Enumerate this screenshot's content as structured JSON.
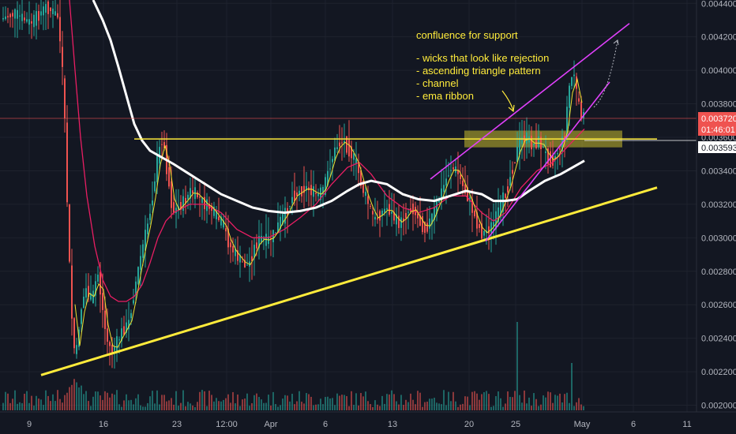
{
  "chart_data": {
    "type": "candlestick",
    "instrument_quote_currency": "",
    "price_axis": {
      "min": 0.00196,
      "max": 0.00442,
      "ticks": [
        "0.004400",
        "0.004200",
        "0.004000",
        "0.003800",
        "0.003600",
        "0.003400",
        "0.003200",
        "0.003000",
        "0.002800",
        "0.002600",
        "0.002400",
        "0.002200",
        "0.002000"
      ]
    },
    "time_axis": {
      "ticks": [
        "9",
        "16",
        "23",
        "12:00",
        "Apr",
        "6",
        "13",
        "20",
        "25",
        "May",
        "6",
        "11"
      ]
    },
    "price_tags": {
      "last_price": "0.003720",
      "countdown": "01:46:01",
      "crosshair_price": "0.003593"
    },
    "price_path": [
      [
        0,
        0.0043
      ],
      [
        20,
        0.00434
      ],
      [
        40,
        0.00428
      ],
      [
        60,
        0.00438
      ],
      [
        75,
        0.00432
      ],
      [
        82,
        0.0039
      ],
      [
        88,
        0.003
      ],
      [
        92,
        0.00255
      ],
      [
        97,
        0.00225
      ],
      [
        103,
        0.00255
      ],
      [
        110,
        0.0027
      ],
      [
        118,
        0.00262
      ],
      [
        125,
        0.0028
      ],
      [
        130,
        0.00262
      ],
      [
        136,
        0.0024
      ],
      [
        143,
        0.00232
      ],
      [
        150,
        0.00238
      ],
      [
        157,
        0.00245
      ],
      [
        164,
        0.00248
      ],
      [
        172,
        0.0027
      ],
      [
        180,
        0.0029
      ],
      [
        187,
        0.00305
      ],
      [
        193,
        0.0032
      ],
      [
        200,
        0.00345
      ],
      [
        207,
        0.0036
      ],
      [
        213,
        0.0034
      ],
      [
        220,
        0.00315
      ],
      [
        227,
        0.00318
      ],
      [
        235,
        0.00322
      ],
      [
        243,
        0.00328
      ],
      [
        252,
        0.00325
      ],
      [
        260,
        0.0032
      ],
      [
        268,
        0.00318
      ],
      [
        276,
        0.00312
      ],
      [
        284,
        0.00308
      ],
      [
        292,
        0.00295
      ],
      [
        300,
        0.0029
      ],
      [
        308,
        0.00285
      ],
      [
        316,
        0.00283
      ],
      [
        324,
        0.00295
      ],
      [
        332,
        0.003
      ],
      [
        340,
        0.00298
      ],
      [
        348,
        0.00302
      ],
      [
        356,
        0.0031
      ],
      [
        364,
        0.00315
      ],
      [
        372,
        0.00325
      ],
      [
        380,
        0.00327
      ],
      [
        388,
        0.0033
      ],
      [
        396,
        0.00328
      ],
      [
        404,
        0.00325
      ],
      [
        412,
        0.0033
      ],
      [
        420,
        0.00345
      ],
      [
        428,
        0.00355
      ],
      [
        436,
        0.00358
      ],
      [
        444,
        0.00352
      ],
      [
        452,
        0.00345
      ],
      [
        460,
        0.0033
      ],
      [
        468,
        0.0032
      ],
      [
        476,
        0.0031
      ],
      [
        484,
        0.00315
      ],
      [
        492,
        0.00318
      ],
      [
        500,
        0.00312
      ],
      [
        508,
        0.00308
      ],
      [
        516,
        0.00315
      ],
      [
        524,
        0.00318
      ],
      [
        532,
        0.0031
      ],
      [
        540,
        0.00305
      ],
      [
        548,
        0.00312
      ],
      [
        556,
        0.00322
      ],
      [
        564,
        0.00332
      ],
      [
        572,
        0.00342
      ],
      [
        580,
        0.0034
      ],
      [
        588,
        0.0033
      ],
      [
        596,
        0.00322
      ],
      [
        604,
        0.0031
      ],
      [
        612,
        0.00302
      ],
      [
        620,
        0.00305
      ],
      [
        628,
        0.0031
      ],
      [
        636,
        0.0032
      ],
      [
        644,
        0.0033
      ],
      [
        652,
        0.00345
      ],
      [
        660,
        0.00358
      ],
      [
        668,
        0.0036
      ],
      [
        676,
        0.00355
      ],
      [
        684,
        0.00358
      ],
      [
        692,
        0.0035
      ],
      [
        700,
        0.00345
      ],
      [
        708,
        0.00352
      ],
      [
        716,
        0.0036
      ],
      [
        722,
        0.0039
      ],
      [
        728,
        0.004
      ],
      [
        734,
        0.00378
      ],
      [
        740,
        0.00372
      ]
    ],
    "ema_slow_white": [
      [
        118,
        0.00442
      ],
      [
        130,
        0.0043
      ],
      [
        140,
        0.00418
      ],
      [
        150,
        0.00402
      ],
      [
        160,
        0.00385
      ],
      [
        170,
        0.00368
      ],
      [
        180,
        0.00358
      ],
      [
        190,
        0.00352
      ],
      [
        205,
        0.00348
      ],
      [
        220,
        0.00344
      ],
      [
        240,
        0.00338
      ],
      [
        260,
        0.00332
      ],
      [
        280,
        0.00326
      ],
      [
        300,
        0.00322
      ],
      [
        320,
        0.00318
      ],
      [
        340,
        0.00316
      ],
      [
        360,
        0.00315
      ],
      [
        380,
        0.00316
      ],
      [
        400,
        0.00318
      ],
      [
        420,
        0.00322
      ],
      [
        440,
        0.00328
      ],
      [
        455,
        0.00332
      ],
      [
        470,
        0.00334
      ],
      [
        490,
        0.00332
      ],
      [
        510,
        0.00326
      ],
      [
        530,
        0.00323
      ],
      [
        550,
        0.00322
      ],
      [
        570,
        0.00325
      ],
      [
        590,
        0.00328
      ],
      [
        610,
        0.00326
      ],
      [
        625,
        0.00322
      ],
      [
        640,
        0.00322
      ],
      [
        655,
        0.00323
      ],
      [
        670,
        0.00328
      ],
      [
        690,
        0.00334
      ],
      [
        710,
        0.00338
      ],
      [
        725,
        0.00342
      ],
      [
        740,
        0.00346
      ]
    ],
    "ema_red": [
      [
        88,
        0.00442
      ],
      [
        95,
        0.004
      ],
      [
        102,
        0.0036
      ],
      [
        110,
        0.00325
      ],
      [
        120,
        0.00295
      ],
      [
        130,
        0.00275
      ],
      [
        140,
        0.00265
      ],
      [
        150,
        0.00262
      ],
      [
        160,
        0.00262
      ],
      [
        170,
        0.00265
      ],
      [
        180,
        0.00272
      ],
      [
        190,
        0.00285
      ],
      [
        200,
        0.003
      ],
      [
        210,
        0.0031
      ],
      [
        220,
        0.00315
      ],
      [
        240,
        0.0032
      ],
      [
        260,
        0.0032
      ],
      [
        280,
        0.00315
      ],
      [
        300,
        0.00305
      ],
      [
        320,
        0.003
      ],
      [
        340,
        0.003
      ],
      [
        360,
        0.00305
      ],
      [
        380,
        0.00312
      ],
      [
        400,
        0.0032
      ],
      [
        420,
        0.00332
      ],
      [
        440,
        0.00342
      ],
      [
        455,
        0.00345
      ],
      [
        470,
        0.00338
      ],
      [
        490,
        0.00325
      ],
      [
        510,
        0.00318
      ],
      [
        530,
        0.00315
      ],
      [
        550,
        0.00318
      ],
      [
        570,
        0.00325
      ],
      [
        590,
        0.00325
      ],
      [
        610,
        0.00315
      ],
      [
        625,
        0.0031
      ],
      [
        640,
        0.00315
      ],
      [
        660,
        0.0033
      ],
      [
        680,
        0.0034
      ],
      [
        700,
        0.00345
      ],
      [
        720,
        0.00355
      ],
      [
        740,
        0.00365
      ]
    ],
    "horizontal_resistance": 0.00359,
    "support_zone": [
      0.00354,
      0.00364
    ],
    "rising_support_line": [
      [
        52,
        0.00218
      ],
      [
        832,
        0.0033
      ]
    ],
    "channel_upper": [
      [
        545,
        0.00335
      ],
      [
        797,
        0.00428
      ]
    ],
    "channel_lower": [
      [
        615,
        0.00298
      ],
      [
        772,
        0.00393
      ]
    ],
    "projection_arrow": [
      [
        752,
        0.00378
      ],
      [
        782,
        0.00418
      ]
    ],
    "annotations": [
      "confluence for support",
      "- wicks that look like rejection",
      "- ascending triangle pattern",
      "- channel",
      "- ema ribbon"
    ],
    "colors": {
      "background": "#131722",
      "up": "#26a69a",
      "down": "#ef5350",
      "ema_slow": "#ffffff",
      "ema_fast": "#f0e130",
      "ema_red": "#e91e63",
      "trendline": "#ffeb3b",
      "channel": "#e040fb",
      "last_price_tag": "#ef5350"
    }
  }
}
